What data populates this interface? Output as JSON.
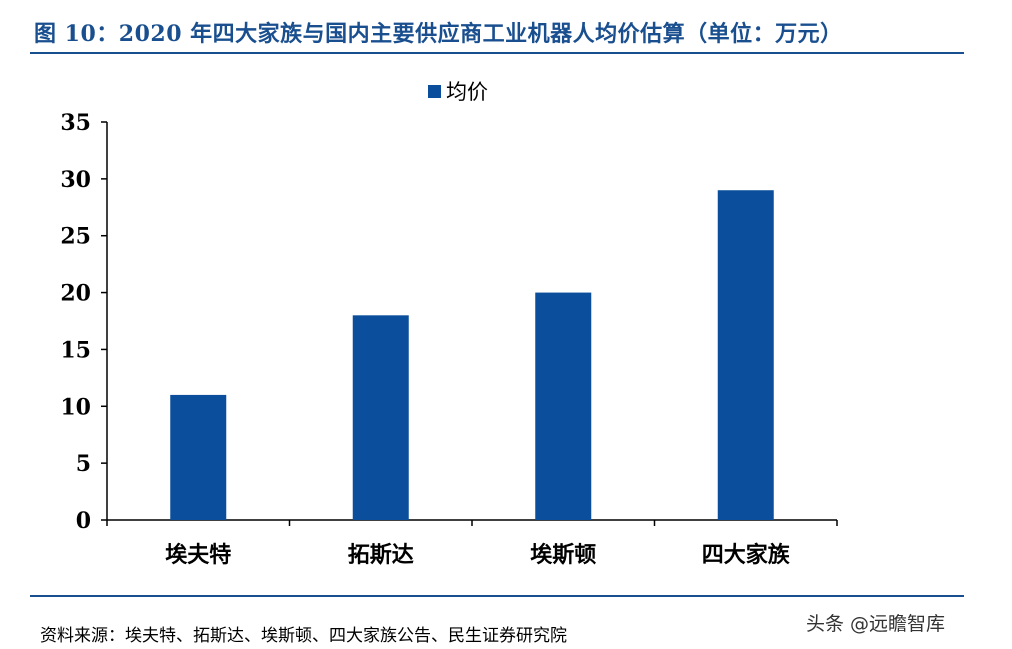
{
  "header": {
    "title": "图 10：2020 年四大家族与国内主要供应商工业机器人均价估算（单位：万元）"
  },
  "chart_data": {
    "type": "bar",
    "categories": [
      "埃夫特",
      "拓斯达",
      "埃斯顿",
      "四大家族"
    ],
    "series": [
      {
        "name": "均价",
        "values": [
          11,
          18,
          20,
          29
        ]
      }
    ],
    "ylim": [
      0,
      35
    ],
    "yticks": [
      "0",
      "5",
      "10",
      "15",
      "20",
      "25",
      "30",
      "35"
    ],
    "legend_position": "top-center",
    "grid": false,
    "bar_color": "#0b4f9c"
  },
  "footer": {
    "source": "资料来源：埃夫特、拓斯达、埃斯顿、四大家族公告、民生证券研究院",
    "watermark": "头条 @远瞻智库"
  }
}
